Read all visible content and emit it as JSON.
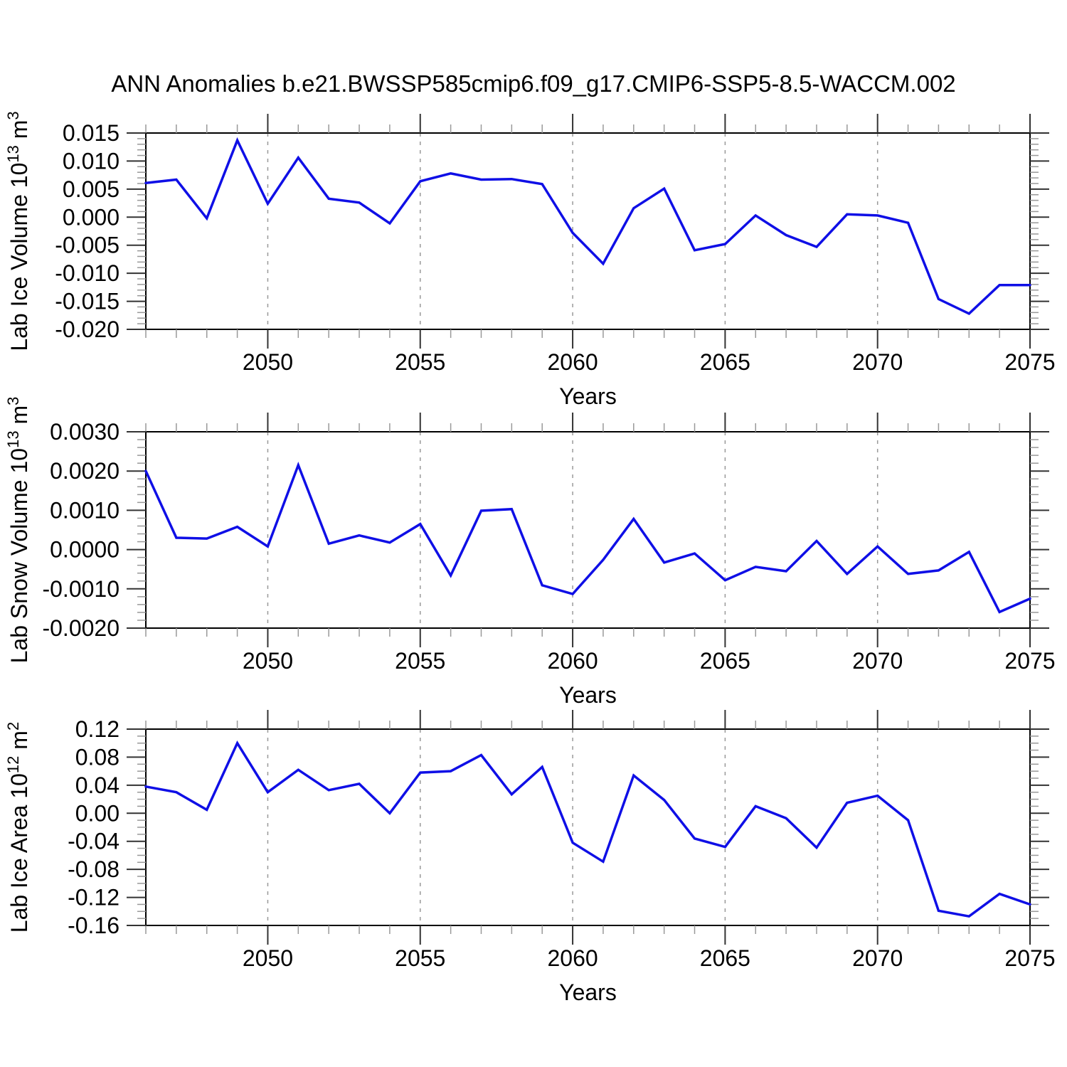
{
  "title": "ANN Anomalies b.e21.BWSSP585cmip6.f09_g17.CMIP6-SSP5-8.5-WACCM.002",
  "colors": {
    "line": "#0f0fe6",
    "grid": "#999999",
    "frame": "#000000",
    "major_tick": "#333333",
    "minor_tick": "#999999",
    "text": "#000000"
  },
  "chart_data": [
    {
      "type": "line",
      "id": "lab-ice-volume",
      "title": "ANN Anomalies b.e21.BWSSP585cmip6.f09_g17.CMIP6-SSP5-8.5-WACCM.002",
      "ylabel": "Lab Ice Volume 10^13 m^3",
      "ylabel_segments": [
        {
          "t": "Lab Ice Volume 10"
        },
        {
          "t": "13",
          "sup": true
        },
        {
          "t": " m"
        },
        {
          "t": "3",
          "sup": true
        }
      ],
      "xlabel": "Years",
      "xlim": [
        2046,
        2075
      ],
      "x": [
        2046,
        2047,
        2048,
        2049,
        2050,
        2051,
        2052,
        2053,
        2054,
        2055,
        2056,
        2057,
        2058,
        2059,
        2060,
        2061,
        2062,
        2063,
        2064,
        2065,
        2066,
        2067,
        2068,
        2069,
        2070,
        2071,
        2072,
        2073,
        2074,
        2075
      ],
      "values": [
        0.0061,
        0.0067,
        -0.0002,
        0.0137,
        0.0024,
        0.0106,
        0.0033,
        0.0026,
        -0.0011,
        0.0064,
        0.0078,
        0.0067,
        0.0068,
        0.0059,
        -0.0028,
        -0.0083,
        0.0016,
        0.0051,
        -0.0059,
        -0.0048,
        0.0003,
        -0.0032,
        -0.0053,
        0.0005,
        0.0003,
        -0.001,
        -0.0146,
        -0.0172,
        -0.0121,
        -0.0121
      ],
      "ylim": [
        -0.02,
        0.015
      ],
      "ytick_values": [
        0.015,
        0.01,
        0.005,
        0.0,
        -0.005,
        -0.01,
        -0.015,
        -0.02
      ],
      "ytick_labels": [
        "0.015",
        "0.010",
        "0.005",
        "0.000",
        "-0.005",
        "-0.010",
        "-0.015",
        "-0.020"
      ],
      "yminor_step": 0.001,
      "xticks": [
        2050,
        2055,
        2060,
        2065,
        2070,
        2075
      ],
      "xtick_labels": [
        "2050",
        "2055",
        "2060",
        "2065",
        "2070",
        "2075"
      ],
      "grid": "vertical-dashed",
      "legend": "none"
    },
    {
      "type": "line",
      "id": "lab-snow-volume",
      "ylabel": "Lab Snow Volume 10^13 m^3",
      "ylabel_segments": [
        {
          "t": "Lab Snow Volume 10"
        },
        {
          "t": "13",
          "sup": true
        },
        {
          "t": " m"
        },
        {
          "t": "3",
          "sup": true
        }
      ],
      "xlabel": "Years",
      "xlim": [
        2046,
        2075
      ],
      "x": [
        2046,
        2047,
        2048,
        2049,
        2050,
        2051,
        2052,
        2053,
        2054,
        2055,
        2056,
        2057,
        2058,
        2059,
        2060,
        2061,
        2062,
        2063,
        2064,
        2065,
        2066,
        2067,
        2068,
        2069,
        2070,
        2071,
        2072,
        2073,
        2074,
        2075
      ],
      "values": [
        0.002,
        0.0003,
        0.00028,
        0.00058,
        8e-05,
        0.00215,
        0.00015,
        0.00036,
        0.00018,
        0.00065,
        -0.00066,
        0.00099,
        0.00103,
        -0.00091,
        -0.00113,
        -0.00026,
        0.00078,
        -0.00033,
        -0.0001,
        -0.00078,
        -0.00044,
        -0.00055,
        0.00022,
        -0.00062,
        8e-05,
        -0.00062,
        -0.00053,
        -6e-05,
        -0.00159,
        -0.00125
      ],
      "ylim": [
        -0.002,
        0.003
      ],
      "ytick_values": [
        0.003,
        0.002,
        0.001,
        0.0,
        -0.001,
        -0.002
      ],
      "ytick_labels": [
        "0.0030",
        "0.0020",
        "0.0010",
        "0.0000",
        "-0.0010",
        "-0.0020"
      ],
      "yminor_step": 0.0002,
      "xticks": [
        2050,
        2055,
        2060,
        2065,
        2070,
        2075
      ],
      "xtick_labels": [
        "2050",
        "2055",
        "2060",
        "2065",
        "2070",
        "2075"
      ],
      "grid": "vertical-dashed",
      "legend": "none"
    },
    {
      "type": "line",
      "id": "lab-ice-area",
      "ylabel": "Lab Ice Area 10^12 m^2",
      "ylabel_segments": [
        {
          "t": "Lab Ice Area 10"
        },
        {
          "t": "12",
          "sup": true
        },
        {
          "t": " m"
        },
        {
          "t": "2",
          "sup": true
        }
      ],
      "xlabel": "Years",
      "xlim": [
        2046,
        2075
      ],
      "x": [
        2046,
        2047,
        2048,
        2049,
        2050,
        2051,
        2052,
        2053,
        2054,
        2055,
        2056,
        2057,
        2058,
        2059,
        2060,
        2061,
        2062,
        2063,
        2064,
        2065,
        2066,
        2067,
        2068,
        2069,
        2070,
        2071,
        2072,
        2073,
        2074,
        2075
      ],
      "values": [
        0.038,
        0.03,
        0.005,
        0.1,
        0.03,
        0.062,
        0.033,
        0.042,
        0.0,
        0.058,
        0.06,
        0.083,
        0.027,
        0.066,
        -0.042,
        -0.069,
        0.054,
        0.019,
        -0.036,
        -0.048,
        0.01,
        -0.007,
        -0.049,
        0.015,
        0.025,
        -0.01,
        -0.139,
        -0.147,
        -0.115,
        -0.13
      ],
      "ylim": [
        -0.16,
        0.12
      ],
      "ytick_values": [
        0.12,
        0.08,
        0.04,
        0.0,
        -0.04,
        -0.08,
        -0.12,
        -0.16
      ],
      "ytick_labels": [
        "0.12",
        "0.08",
        "0.04",
        "0.00",
        "-0.04",
        "-0.08",
        "-0.12",
        "-0.16"
      ],
      "yminor_step": 0.01,
      "xticks": [
        2050,
        2055,
        2060,
        2065,
        2070,
        2075
      ],
      "xtick_labels": [
        "2050",
        "2055",
        "2060",
        "2065",
        "2070",
        "2075"
      ],
      "grid": "vertical-dashed",
      "legend": "none"
    }
  ]
}
